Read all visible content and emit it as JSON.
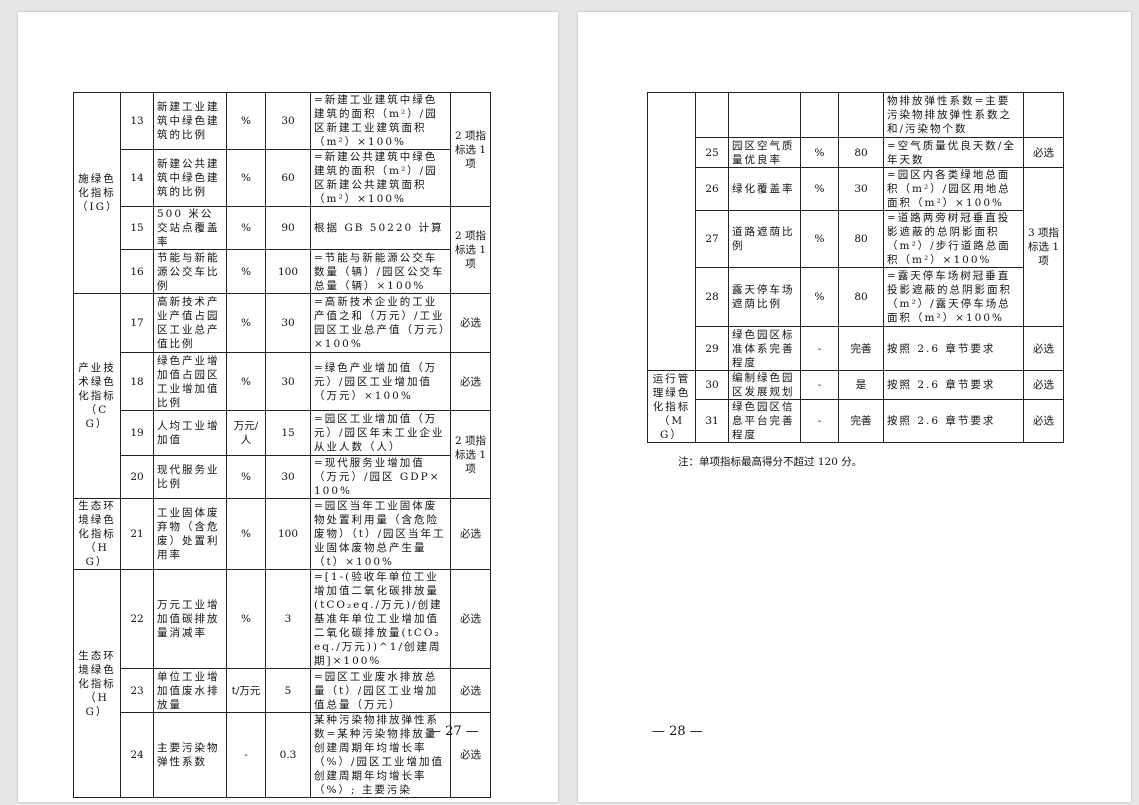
{
  "pages": [
    {
      "page_number": "— 27 —",
      "category_groups": [
        {
          "label": "施绿色化指标（IG）",
          "count": 4
        },
        {
          "label": "产业技术绿色化指标（CG）",
          "count": 4
        },
        {
          "label": "生态环境绿色化指标（HG）",
          "count": 1
        },
        {
          "label": "生态环境绿色化指标（HG）",
          "count": 3
        }
      ],
      "note_groups": [
        {
          "label": "2 项指标选 1 项",
          "count": 2
        },
        {
          "label": "2 项指标选 1 项",
          "count": 2
        },
        {
          "label": "必选",
          "count": 1
        },
        {
          "label": "必选",
          "count": 1
        },
        {
          "label": "2 项指标选 1 项",
          "count": 2
        },
        {
          "label": "必选",
          "count": 1
        },
        {
          "label": "必选",
          "count": 1
        },
        {
          "label": "必选",
          "count": 1
        },
        {
          "label": "必选",
          "count": 1
        }
      ],
      "rows": [
        {
          "no": "13",
          "name": "新建工业建筑中绿色建筑的比例",
          "unit": "%",
          "target": "30",
          "formula": "=新建工业建筑中绿色建筑的面积（m²）/园区新建工业建筑面积（m²）×100%"
        },
        {
          "no": "14",
          "name": "新建公共建筑中绿色建筑的比例",
          "unit": "%",
          "target": "60",
          "formula": "=新建公共建筑中绿色建筑的面积（m²）/园区新建公共建筑面积（m²）×100%"
        },
        {
          "no": "15",
          "name": "500 米公交站点覆盖率",
          "unit": "%",
          "target": "90",
          "formula": "根据 GB 50220 计算"
        },
        {
          "no": "16",
          "name": "节能与新能源公交车比例",
          "unit": "%",
          "target": "100",
          "formula": "=节能与新能源公交车数量（辆）/园区公交车总量（辆）×100%"
        },
        {
          "no": "17",
          "name": "高新技术产业产值占园区工业总产值比例",
          "unit": "%",
          "target": "30",
          "formula": "=高新技术企业的工业产值之和（万元）/工业园区工业总产值（万元）×100%"
        },
        {
          "no": "18",
          "name": "绿色产业增加值占园区工业增加值比例",
          "unit": "%",
          "target": "30",
          "formula": "=绿色产业增加值（万元）/园区工业增加值（万元）×100%"
        },
        {
          "no": "19",
          "name": "人均工业增加值",
          "unit": "万元/人",
          "target": "15",
          "formula": "=园区工业增加值（万元）/园区年末工业企业从业人数（人）"
        },
        {
          "no": "20",
          "name": "现代服务业比例",
          "unit": "%",
          "target": "30",
          "formula": "=现代服务业增加值（万元）/园区 GDP×100%"
        },
        {
          "no": "21",
          "name": "工业固体废弃物（含危废）处置利用率",
          "unit": "%",
          "target": "100",
          "formula": "=园区当年工业固体废物处置利用量（含危险废物）（t）/园区当年工业固体废物总产生量（t）×100%"
        },
        {
          "no": "22",
          "name": "万元工业增加值碳排放量消减率",
          "unit": "%",
          "target": "3",
          "formula": "=[1-(验收年单位工业增加值二氧化碳排放量(tCO₂eq./万元)/创建基准年单位工业增加值二氧化碳排放量(tCO₂eq./万元))^1/创建周期]×100%"
        },
        {
          "no": "23",
          "name": "单位工业增加值废水排放量",
          "unit": "t/万元",
          "target": "5",
          "formula": "=园区工业废水排放总量（t）/园区工业增加值总量（万元）"
        },
        {
          "no": "24",
          "name": "主要污染物弹性系数",
          "unit": "-",
          "target": "0.3",
          "formula": "某种污染物排放弹性系数=某种污染物排放量创建周期年均增长率（%）/园区工业增加值创建周期年均增长率（%）; 主要污染"
        }
      ]
    },
    {
      "page_number": "— 28 —",
      "category_groups": [
        {
          "label": "",
          "count": 6
        },
        {
          "label": "运行管理绿色化指标（MG）",
          "count": 3
        }
      ],
      "note_groups": [
        {
          "label": "",
          "count": 1
        },
        {
          "label": "必选",
          "count": 1
        },
        {
          "label": "3 项指标选 1 项",
          "count": 3
        },
        {
          "label": "必选",
          "count": 1
        },
        {
          "label": "必选",
          "count": 1
        },
        {
          "label": "必选",
          "count": 1
        }
      ],
      "rows": [
        {
          "no": "",
          "name": "",
          "unit": "",
          "target": "",
          "formula": "物排放弹性系数=主要污染物排放弹性系数之和/污染物个数"
        },
        {
          "no": "25",
          "name": "园区空气质量优良率",
          "unit": "%",
          "target": "80",
          "formula": "=空气质量优良天数/全年天数"
        },
        {
          "no": "26",
          "name": "绿化覆盖率",
          "unit": "%",
          "target": "30",
          "formula": "=园区内各类绿地总面积（m²）/园区用地总面积（m²）×100%"
        },
        {
          "no": "27",
          "name": "道路遮荫比例",
          "unit": "%",
          "target": "80",
          "formula": "=道路两旁树冠垂直投影遮蔽的总阴影面积（m²）/步行道路总面积（m²）×100%"
        },
        {
          "no": "28",
          "name": "露天停车场遮荫比例",
          "unit": "%",
          "target": "80",
          "formula": "=露天停车场树冠垂直投影遮蔽的总阴影面积（m²）/露天停车场总面积（m²）×100%"
        },
        {
          "no": "29",
          "name": "绿色园区标准体系完善程度",
          "unit": "-",
          "target": "完善",
          "formula": "按照 2.6 章节要求"
        },
        {
          "no": "30",
          "name": "编制绿色园区发展规划",
          "unit": "-",
          "target": "是",
          "formula": "按照 2.6 章节要求"
        },
        {
          "no": "31",
          "name": "绿色园区信息平台完善程度",
          "unit": "-",
          "target": "完善",
          "formula": "按照 2.6 章节要求"
        }
      ],
      "footnote": "注：单项指标最高得分不超过 120 分。"
    }
  ]
}
